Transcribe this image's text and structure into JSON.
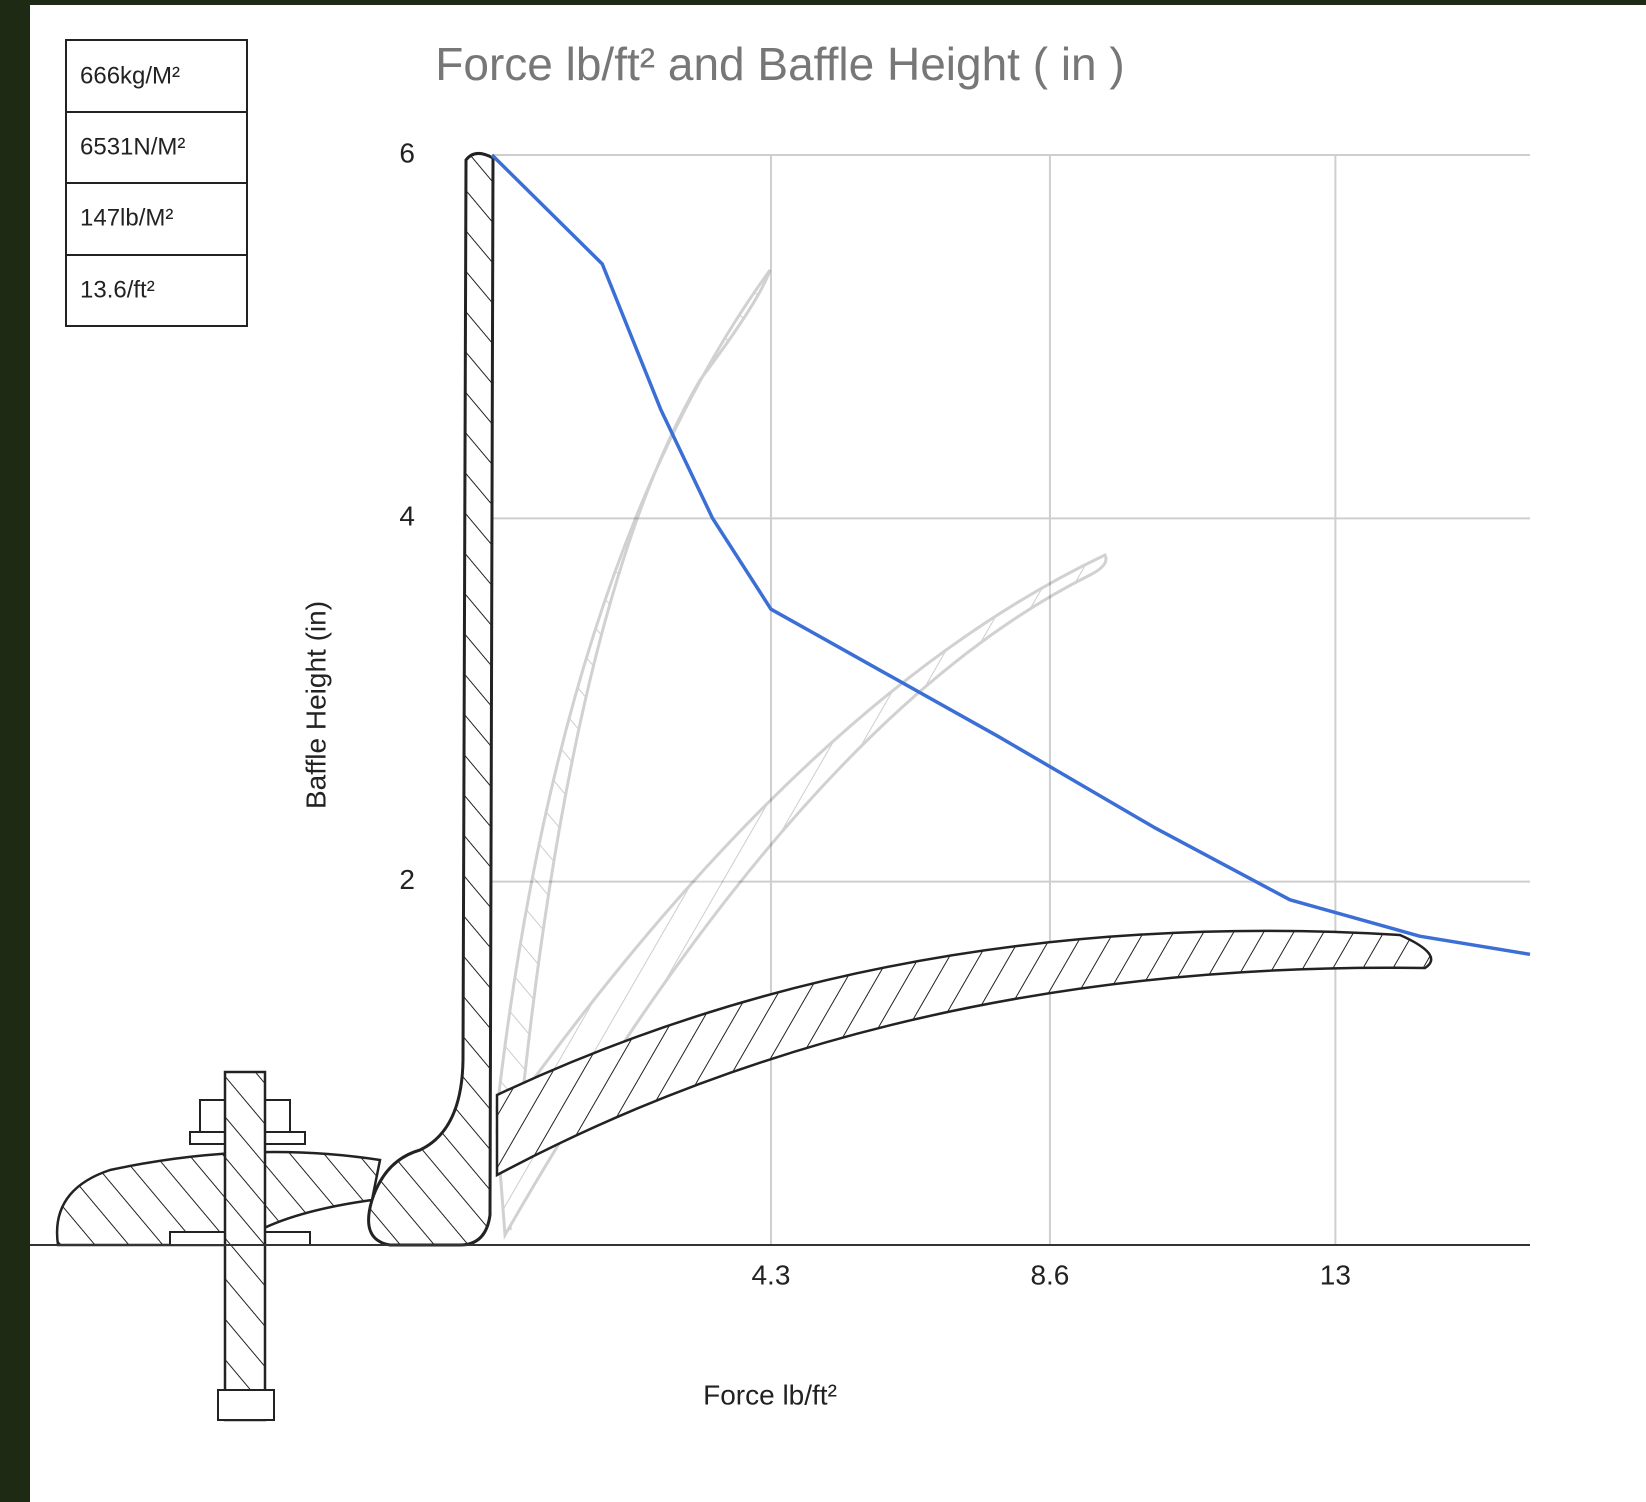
{
  "chart_data": {
    "type": "line",
    "title": "Force lb/ft² and Baffle Height ( in )",
    "x_label": "Force lb/ft²",
    "y_label": "Baffle Height (in)",
    "table": [
      "666kg/M²",
      "6531N/M²",
      "147lb/M²",
      "13.6/ft²"
    ],
    "x": [
      0,
      1.7,
      2.6,
      3.4,
      4.3,
      5.8,
      7.8,
      10.2,
      12.3,
      14.3,
      16
    ],
    "values": [
      6,
      5.4,
      4.6,
      4.0,
      3.5,
      3.2,
      2.8,
      2.3,
      1.9,
      1.7,
      1.6
    ],
    "color": "#3b6fd6",
    "xlim": [
      0,
      16
    ],
    "xticks": [
      4.3,
      8.6,
      13
    ],
    "ylim": [
      0,
      6
    ],
    "yticks": [
      2,
      4,
      6
    ],
    "grid": true
  }
}
